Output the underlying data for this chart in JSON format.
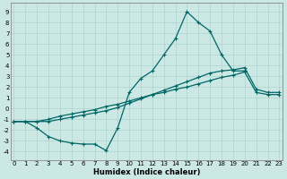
{
  "xlabel": "Humidex (Indice chaleur)",
  "background_color": "#cce8e4",
  "grid_color": "#aad4cc",
  "line_color": "#006666",
  "xlim": [
    -0.3,
    23.3
  ],
  "ylim": [
    -4.8,
    9.8
  ],
  "xticks": [
    0,
    1,
    2,
    3,
    4,
    5,
    6,
    7,
    8,
    9,
    10,
    11,
    12,
    13,
    14,
    15,
    16,
    17,
    18,
    19,
    20,
    21,
    22,
    23
  ],
  "yticks": [
    -4,
    -3,
    -2,
    -1,
    0,
    1,
    2,
    3,
    4,
    5,
    6,
    7,
    8,
    9
  ],
  "line1_x": [
    0,
    1,
    2,
    3,
    4,
    5,
    6,
    7,
    8,
    9,
    10,
    11,
    12,
    13,
    14,
    15,
    16,
    17,
    18,
    19,
    20
  ],
  "line1_y": [
    -1.2,
    -1.2,
    -1.8,
    -2.6,
    -3.0,
    -3.2,
    -3.3,
    -3.3,
    -3.9,
    -1.8,
    1.5,
    2.8,
    3.5,
    5.0,
    6.5,
    9.0,
    8.0,
    7.2,
    5.0,
    3.5,
    3.5
  ],
  "line2_x": [
    0,
    1,
    2,
    3,
    4,
    5,
    6,
    7,
    8,
    9,
    10,
    11,
    12,
    13,
    14,
    15,
    16,
    17,
    18,
    19,
    20,
    21,
    22,
    23
  ],
  "line2_y": [
    -1.2,
    -1.2,
    -1.2,
    -1.2,
    -1.0,
    -0.8,
    -0.6,
    -0.4,
    -0.2,
    0.1,
    0.5,
    0.9,
    1.3,
    1.7,
    2.1,
    2.5,
    2.9,
    3.3,
    3.5,
    3.6,
    3.8,
    1.8,
    1.5,
    1.5
  ],
  "line3_x": [
    0,
    1,
    2,
    3,
    4,
    5,
    6,
    7,
    8,
    9,
    10,
    11,
    12,
    13,
    14,
    15,
    16,
    17,
    18,
    19,
    20,
    21,
    22,
    23
  ],
  "line3_y": [
    -1.2,
    -1.2,
    -1.2,
    -1.0,
    -0.7,
    -0.5,
    -0.3,
    -0.1,
    0.2,
    0.4,
    0.7,
    1.0,
    1.3,
    1.5,
    1.8,
    2.0,
    2.3,
    2.6,
    2.9,
    3.1,
    3.4,
    1.5,
    1.3,
    1.3
  ]
}
